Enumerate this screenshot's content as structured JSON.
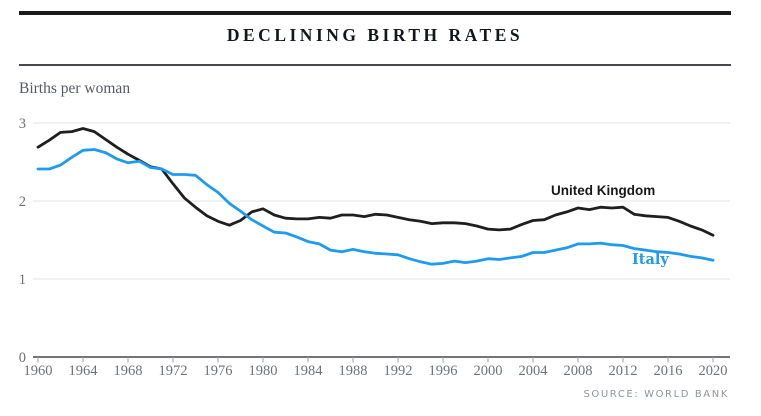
{
  "header": {
    "title": "DECLINING BIRTH RATES"
  },
  "chart": {
    "unit_label": "Births per woman"
  },
  "footer": {
    "source": "SOURCE: WORLD BANK"
  },
  "chart_data": {
    "type": "line",
    "title": "DECLINING BIRTH RATES",
    "ylabel": "Births per woman",
    "xlabel": "",
    "x_start": 1960,
    "x_end": 2020,
    "x_step": 1,
    "xticks": [
      1960,
      1964,
      1968,
      1972,
      1976,
      1980,
      1984,
      1988,
      1992,
      1996,
      2000,
      2004,
      2008,
      2012,
      2016,
      2020
    ],
    "yticks": [
      0,
      1,
      2,
      3
    ],
    "ylim": [
      0,
      3
    ],
    "grid": "horizontal gridlines at 1, 2, 3",
    "legend_position": "inline labels on lines",
    "source": "World Bank",
    "colors": {
      "united_kingdom": "#1f1f1f",
      "italy": "#1e9bf0",
      "gridline": "#e3e3e3",
      "axis": "#43464a",
      "tick_label": "#6e7276"
    },
    "series": [
      {
        "name": "United Kingdom",
        "color": "#1f1f1f",
        "values": [
          2.69,
          2.78,
          2.88,
          2.89,
          2.93,
          2.89,
          2.79,
          2.69,
          2.6,
          2.52,
          2.44,
          2.41,
          2.22,
          2.04,
          1.92,
          1.81,
          1.74,
          1.69,
          1.75,
          1.86,
          1.9,
          1.82,
          1.78,
          1.77,
          1.77,
          1.79,
          1.78,
          1.82,
          1.82,
          1.8,
          1.83,
          1.82,
          1.79,
          1.76,
          1.74,
          1.71,
          1.72,
          1.72,
          1.71,
          1.68,
          1.64,
          1.63,
          1.64,
          1.7,
          1.75,
          1.76,
          1.82,
          1.86,
          1.91,
          1.89,
          1.92,
          1.91,
          1.92,
          1.83,
          1.81,
          1.8,
          1.79,
          1.74,
          1.68,
          1.63,
          1.56
        ]
      },
      {
        "name": "Italy",
        "color": "#1e9bf0",
        "values": [
          2.41,
          2.41,
          2.46,
          2.56,
          2.65,
          2.66,
          2.62,
          2.54,
          2.49,
          2.51,
          2.43,
          2.41,
          2.34,
          2.34,
          2.33,
          2.21,
          2.11,
          1.97,
          1.87,
          1.76,
          1.68,
          1.6,
          1.59,
          1.54,
          1.48,
          1.45,
          1.37,
          1.35,
          1.38,
          1.35,
          1.33,
          1.32,
          1.31,
          1.26,
          1.22,
          1.19,
          1.2,
          1.23,
          1.21,
          1.23,
          1.26,
          1.25,
          1.27,
          1.29,
          1.34,
          1.34,
          1.37,
          1.4,
          1.45,
          1.45,
          1.46,
          1.44,
          1.43,
          1.39,
          1.37,
          1.35,
          1.34,
          1.32,
          1.29,
          1.27,
          1.24
        ]
      }
    ]
  }
}
